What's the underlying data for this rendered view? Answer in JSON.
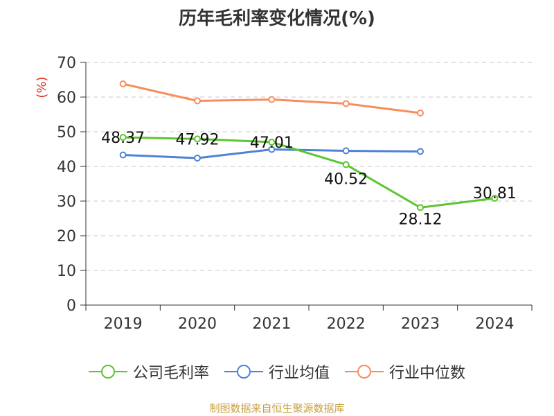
{
  "title": "历年毛利率变化情况(%)",
  "source": "制图数据来自恒生聚源数据库",
  "chart_data": {
    "type": "line",
    "title": "历年毛利率变化情况(%)",
    "ylabel": "(%)",
    "ylim": [
      0,
      70
    ],
    "yticks": [
      0,
      10,
      20,
      30,
      40,
      50,
      60,
      70
    ],
    "grid": true,
    "legend_position": "bottom",
    "categories": [
      "2019",
      "2020",
      "2021",
      "2022",
      "2023",
      "2024"
    ],
    "series": [
      {
        "name": "公司毛利率",
        "color": "#5dc531",
        "values": [
          48.37,
          47.92,
          47.01,
          40.52,
          28.12,
          30.81
        ],
        "labels": [
          "48.37",
          "47.92",
          "47.01",
          "40.52",
          "28.12",
          "30.81"
        ],
        "show_labels": true
      },
      {
        "name": "行业均值",
        "color": "#4e82d7",
        "values": [
          43.3,
          42.4,
          44.9,
          44.5,
          44.3,
          null
        ],
        "show_labels": false
      },
      {
        "name": "行业中位数",
        "color": "#f78d5b",
        "values": [
          63.8,
          58.9,
          59.3,
          58.1,
          55.4,
          null
        ],
        "show_labels": false
      }
    ]
  }
}
